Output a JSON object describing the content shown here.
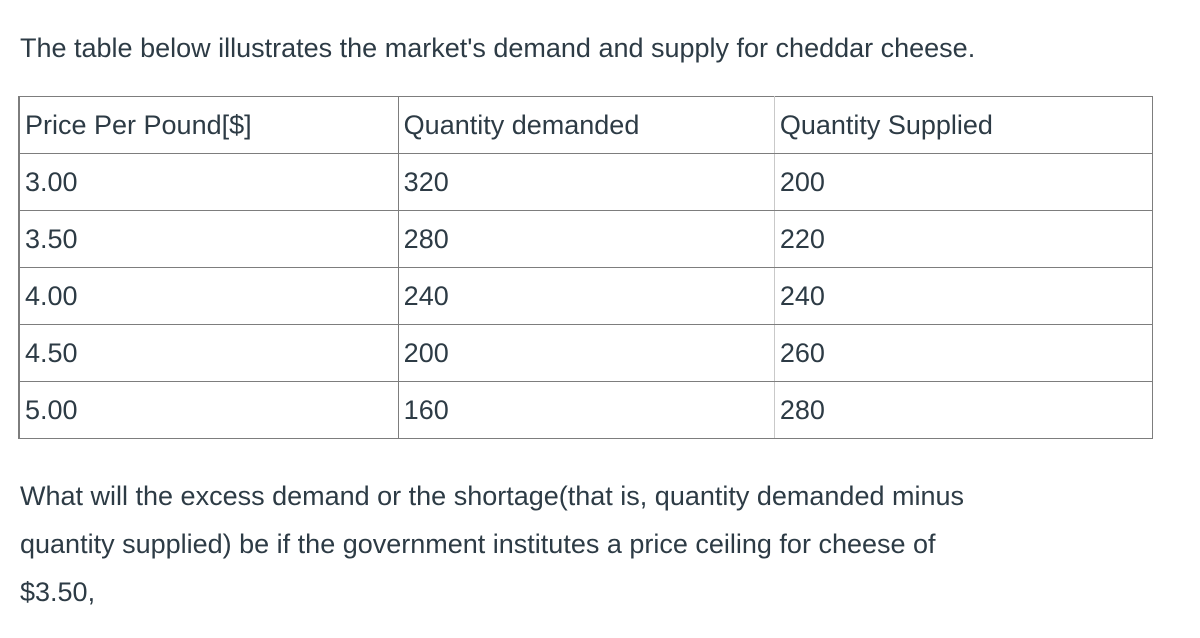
{
  "intro_text": "The table below illustrates the market's demand and supply for cheddar cheese.",
  "table": {
    "headers": [
      "Price Per Pound[$]",
      "Quantity demanded",
      "Quantity Supplied"
    ],
    "rows": [
      [
        "3.00",
        "320",
        "200"
      ],
      [
        "3.50",
        "280",
        "220"
      ],
      [
        "4.00",
        "240",
        "240"
      ],
      [
        "4.50",
        "200",
        "260"
      ],
      [
        "5.00",
        "160",
        "280"
      ]
    ]
  },
  "question": {
    "line1": "What will the excess demand or the shortage(that is, quantity demanded minus",
    "line2": "quantity supplied) be if the government institutes a price ceiling for cheese of",
    "line3": "$3.50,"
  }
}
